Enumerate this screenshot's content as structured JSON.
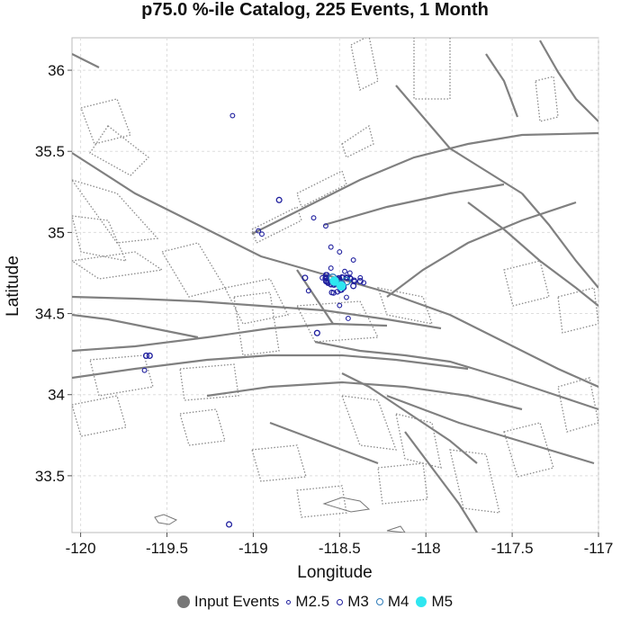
{
  "title": "p75.0 %-ile Catalog, 225 Events, 1 Month",
  "xlabel": "Longitude",
  "ylabel": "Latitude",
  "xticks": [
    "-120",
    "-119.5",
    "-119",
    "-118.5",
    "-118",
    "-117.5",
    "-117"
  ],
  "yticks": [
    "33.5",
    "34",
    "34.5",
    "35",
    "35.5",
    "36"
  ],
  "legend": [
    {
      "label": "Input Events",
      "icon": "filled-gray-circle",
      "color": "#777777"
    },
    {
      "label": "M2.5",
      "icon": "small-blue-ring",
      "color": "#1f1f9e"
    },
    {
      "label": "M3",
      "icon": "blue-ring",
      "color": "#1f1f9e"
    },
    {
      "label": "M4",
      "icon": "light-blue-ring",
      "color": "#2e7bb8"
    },
    {
      "label": "M5",
      "icon": "cyan-dot",
      "color": "#2fe6f0"
    }
  ],
  "chart_data": {
    "type": "scatter",
    "title": "p75.0 %-ile Catalog, 225 Events, 1 Month",
    "xlabel": "Longitude",
    "ylabel": "Latitude",
    "xlim": [
      -120.05,
      -117.0
    ],
    "ylim": [
      33.15,
      36.2
    ],
    "grid": true,
    "legend_position": "bottom",
    "series": [
      {
        "name": "M2.5",
        "color": "#1f1f9e",
        "points": [
          [
            -119.12,
            35.72
          ],
          [
            -118.97,
            35.01
          ],
          [
            -118.95,
            34.99
          ],
          [
            -118.65,
            35.09
          ],
          [
            -118.58,
            35.04
          ],
          [
            -118.55,
            34.91
          ],
          [
            -118.5,
            34.88
          ],
          [
            -118.42,
            34.83
          ],
          [
            -118.55,
            34.78
          ],
          [
            -118.47,
            34.76
          ],
          [
            -118.44,
            34.75
          ],
          [
            -118.38,
            34.72
          ],
          [
            -118.36,
            34.69
          ],
          [
            -118.58,
            34.74
          ],
          [
            -118.6,
            34.72
          ],
          [
            -118.46,
            34.6
          ],
          [
            -118.5,
            34.55
          ],
          [
            -118.45,
            34.47
          ],
          [
            -118.68,
            34.64
          ],
          [
            -119.63,
            34.15
          ]
        ]
      },
      {
        "name": "M3",
        "color": "#1f1f9e",
        "points": [
          [
            -118.85,
            35.2
          ],
          [
            -118.7,
            34.72
          ],
          [
            -118.38,
            34.7
          ],
          [
            -118.63,
            34.38
          ],
          [
            -119.6,
            34.24
          ],
          [
            -119.62,
            34.24
          ],
          [
            -119.14,
            33.2
          ],
          [
            -118.42,
            34.67
          ]
        ]
      },
      {
        "name": "M4",
        "color": "#2e7bb8",
        "points": [
          [
            -118.54,
            34.72
          ],
          [
            -118.5,
            34.68
          ],
          [
            -118.46,
            34.7
          ]
        ]
      },
      {
        "name": "M5",
        "color": "#2fe6f0",
        "points": [
          [
            -118.53,
            34.7
          ],
          [
            -118.49,
            34.67
          ]
        ]
      }
    ]
  }
}
